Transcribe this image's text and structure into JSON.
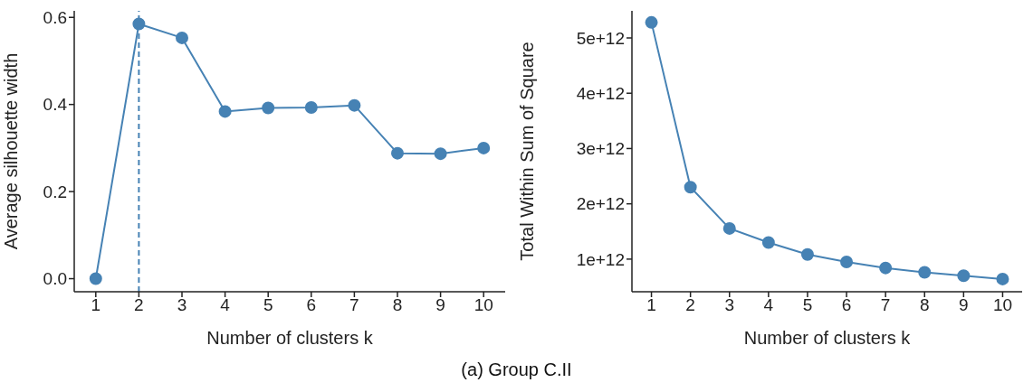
{
  "chart_data": [
    {
      "type": "line",
      "xlabel": "Number of clusters k",
      "ylabel": "Average silhouette width",
      "x": [
        1,
        2,
        3,
        4,
        5,
        6,
        7,
        8,
        9,
        10
      ],
      "series": [
        {
          "color": "#4682b4",
          "values": [
            0,
            0.585,
            0.553,
            0.384,
            0.392,
            0.393,
            0.398,
            0.288,
            0.287,
            0.3
          ]
        }
      ],
      "xlim": [
        0.5,
        10.5
      ],
      "xticks": [
        1,
        2,
        3,
        4,
        5,
        6,
        7,
        8,
        9,
        10
      ],
      "ylim": [
        -0.03,
        0.615
      ],
      "yticks": [
        {
          "value": 0,
          "label": "0.0"
        },
        0.2,
        0.4,
        0.6
      ],
      "ref_lines": [
        {
          "axis": "x",
          "value": 2,
          "color": "#4682b4",
          "line_style": "dashed"
        }
      ],
      "grid": false,
      "legend": false,
      "marker": "circle",
      "line_style": "solid"
    },
    {
      "type": "line",
      "xlabel": "Number of clusters k",
      "ylabel": "Total Within Sum of Square",
      "x": [
        1,
        2,
        3,
        4,
        5,
        6,
        7,
        8,
        9,
        10
      ],
      "series": [
        {
          "color": "#4682b4",
          "values": [
            5280000000000,
            2300000000000,
            1555000000000,
            1300000000000,
            1085000000000,
            950000000000,
            840000000000,
            760000000000,
            700000000000,
            640000000000
          ]
        }
      ],
      "xlim": [
        0.5,
        10.5
      ],
      "xticks": [
        1,
        2,
        3,
        4,
        5,
        6,
        7,
        8,
        9,
        10
      ],
      "ylim": [
        410000000000,
        5490000000000
      ],
      "yticks": [
        {
          "value": 1000000000000,
          "label": "1e+12"
        },
        {
          "value": 2000000000000,
          "label": "2e+12"
        },
        {
          "value": 3000000000000,
          "label": "3e+12"
        },
        {
          "value": 4000000000000,
          "label": "4e+12"
        },
        {
          "value": 5000000000000,
          "label": "5e+12"
        }
      ],
      "grid": false,
      "legend": false,
      "marker": "circle",
      "line_style": "solid",
      "annotations": [
        "(a) Group C.II"
      ]
    }
  ]
}
